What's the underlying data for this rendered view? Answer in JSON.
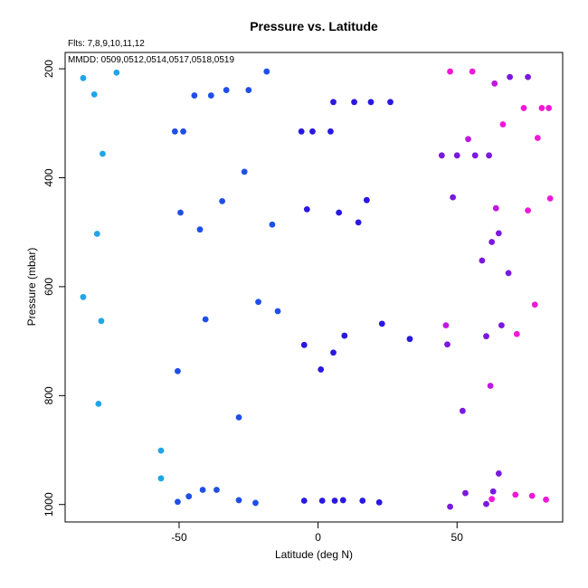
{
  "chart_data": {
    "type": "scatter",
    "title": "Pressure vs. Latitude",
    "subtitle_fits": "Flts: 7,8,9,10,11,12",
    "subtitle_mmdd": "MMDD: 0509,0512,0514,0517,0518,0519",
    "xlabel": "Latitude (deg N)",
    "ylabel": "Pressure (mbar)",
    "xlim": [
      -91,
      88
    ],
    "ylim": [
      1032,
      170
    ],
    "y_reversed": true,
    "x_ticks": [
      -50,
      0,
      50
    ],
    "y_ticks": [
      200,
      400,
      600,
      800,
      1000
    ],
    "grid": false,
    "legend": "none",
    "colors": [
      "#1FA5E8",
      "#1F4FE8",
      "#2A18E0",
      "#7A18E0",
      "#C018E0",
      "#F018D8"
    ],
    "points": [
      {
        "x": -84.5,
        "y": 217,
        "c": 0
      },
      {
        "x": -80.5,
        "y": 247,
        "c": 0
      },
      {
        "x": -72.5,
        "y": 207,
        "c": 0
      },
      {
        "x": -77.5,
        "y": 356,
        "c": 0
      },
      {
        "x": -79.5,
        "y": 503,
        "c": 0
      },
      {
        "x": -84.5,
        "y": 619,
        "c": 0
      },
      {
        "x": -78,
        "y": 663,
        "c": 0
      },
      {
        "x": -79,
        "y": 815,
        "c": 0
      },
      {
        "x": -56.5,
        "y": 901,
        "c": 0
      },
      {
        "x": -56.5,
        "y": 952,
        "c": 0
      },
      {
        "x": -18.5,
        "y": 205,
        "c": 1
      },
      {
        "x": -44.5,
        "y": 249,
        "c": 1
      },
      {
        "x": -38.5,
        "y": 249,
        "c": 1
      },
      {
        "x": -33,
        "y": 239,
        "c": 1
      },
      {
        "x": -25,
        "y": 239,
        "c": 1
      },
      {
        "x": -51.5,
        "y": 315,
        "c": 1
      },
      {
        "x": -48.5,
        "y": 315,
        "c": 1
      },
      {
        "x": -26.5,
        "y": 389,
        "c": 1
      },
      {
        "x": -34.5,
        "y": 443,
        "c": 1
      },
      {
        "x": -49.5,
        "y": 464,
        "c": 1
      },
      {
        "x": -42.5,
        "y": 495,
        "c": 1
      },
      {
        "x": -16.5,
        "y": 486,
        "c": 1
      },
      {
        "x": -21.5,
        "y": 628,
        "c": 1
      },
      {
        "x": -14.5,
        "y": 645,
        "c": 1
      },
      {
        "x": -40.5,
        "y": 660,
        "c": 1
      },
      {
        "x": -50.5,
        "y": 755,
        "c": 1
      },
      {
        "x": -28.5,
        "y": 840,
        "c": 1
      },
      {
        "x": -46.5,
        "y": 985,
        "c": 1
      },
      {
        "x": -41.5,
        "y": 973,
        "c": 1
      },
      {
        "x": -36.5,
        "y": 973,
        "c": 1
      },
      {
        "x": -28.5,
        "y": 992,
        "c": 1
      },
      {
        "x": -22.5,
        "y": 997,
        "c": 1
      },
      {
        "x": -50.5,
        "y": 995,
        "c": 1
      },
      {
        "x": 5.5,
        "y": 261,
        "c": 2
      },
      {
        "x": 13,
        "y": 261,
        "c": 2
      },
      {
        "x": 19,
        "y": 261,
        "c": 2
      },
      {
        "x": 26,
        "y": 261,
        "c": 2
      },
      {
        "x": -6,
        "y": 315,
        "c": 2
      },
      {
        "x": -2,
        "y": 315,
        "c": 2
      },
      {
        "x": 4.5,
        "y": 315,
        "c": 2
      },
      {
        "x": 17.5,
        "y": 441,
        "c": 2
      },
      {
        "x": -4,
        "y": 458,
        "c": 2
      },
      {
        "x": 7.5,
        "y": 464,
        "c": 2
      },
      {
        "x": 14.5,
        "y": 482,
        "c": 2
      },
      {
        "x": 23,
        "y": 668,
        "c": 2
      },
      {
        "x": 33,
        "y": 696,
        "c": 2
      },
      {
        "x": 9.5,
        "y": 690,
        "c": 2
      },
      {
        "x": -5,
        "y": 707,
        "c": 2
      },
      {
        "x": 5.5,
        "y": 721,
        "c": 2
      },
      {
        "x": 1,
        "y": 752,
        "c": 2
      },
      {
        "x": -5,
        "y": 993,
        "c": 2
      },
      {
        "x": 1.5,
        "y": 993,
        "c": 2
      },
      {
        "x": 6,
        "y": 993,
        "c": 2
      },
      {
        "x": 9,
        "y": 992,
        "c": 2
      },
      {
        "x": 16,
        "y": 993,
        "c": 2
      },
      {
        "x": 22,
        "y": 996,
        "c": 2
      },
      {
        "x": 69,
        "y": 215,
        "c": 3
      },
      {
        "x": 75.5,
        "y": 215,
        "c": 3
      },
      {
        "x": 44.5,
        "y": 359,
        "c": 3
      },
      {
        "x": 50,
        "y": 359,
        "c": 3
      },
      {
        "x": 56.5,
        "y": 359,
        "c": 3
      },
      {
        "x": 61.5,
        "y": 359,
        "c": 3
      },
      {
        "x": 48.5,
        "y": 436,
        "c": 3
      },
      {
        "x": 65,
        "y": 502,
        "c": 3
      },
      {
        "x": 62.5,
        "y": 518,
        "c": 3
      },
      {
        "x": 59,
        "y": 552,
        "c": 3
      },
      {
        "x": 68.5,
        "y": 575,
        "c": 3
      },
      {
        "x": 66,
        "y": 671,
        "c": 3
      },
      {
        "x": 60.5,
        "y": 691,
        "c": 3
      },
      {
        "x": 46.5,
        "y": 706,
        "c": 3
      },
      {
        "x": 52,
        "y": 828,
        "c": 3
      },
      {
        "x": 65,
        "y": 943,
        "c": 3
      },
      {
        "x": 63,
        "y": 976,
        "c": 3
      },
      {
        "x": 53,
        "y": 979,
        "c": 3
      },
      {
        "x": 60.5,
        "y": 999,
        "c": 3
      },
      {
        "x": 47.5,
        "y": 1004,
        "c": 3
      },
      {
        "x": 63.5,
        "y": 227,
        "c": 4
      },
      {
        "x": 54,
        "y": 329,
        "c": 4
      },
      {
        "x": 64,
        "y": 456,
        "c": 4
      },
      {
        "x": 46,
        "y": 671,
        "c": 4
      },
      {
        "x": 62,
        "y": 782,
        "c": 4
      },
      {
        "x": 47.5,
        "y": 205,
        "c": 5
      },
      {
        "x": 55.5,
        "y": 205,
        "c": 5
      },
      {
        "x": 74,
        "y": 272,
        "c": 5
      },
      {
        "x": 80.5,
        "y": 272,
        "c": 5
      },
      {
        "x": 83,
        "y": 272,
        "c": 5
      },
      {
        "x": 66.5,
        "y": 302,
        "c": 5
      },
      {
        "x": 79,
        "y": 327,
        "c": 5
      },
      {
        "x": 83.5,
        "y": 438,
        "c": 5
      },
      {
        "x": 75.5,
        "y": 460,
        "c": 5
      },
      {
        "x": 78,
        "y": 633,
        "c": 5
      },
      {
        "x": 71.5,
        "y": 687,
        "c": 5
      },
      {
        "x": 71,
        "y": 982,
        "c": 5
      },
      {
        "x": 77,
        "y": 984,
        "c": 5
      },
      {
        "x": 82,
        "y": 991,
        "c": 5
      },
      {
        "x": 62.5,
        "y": 990,
        "c": 5
      }
    ]
  }
}
